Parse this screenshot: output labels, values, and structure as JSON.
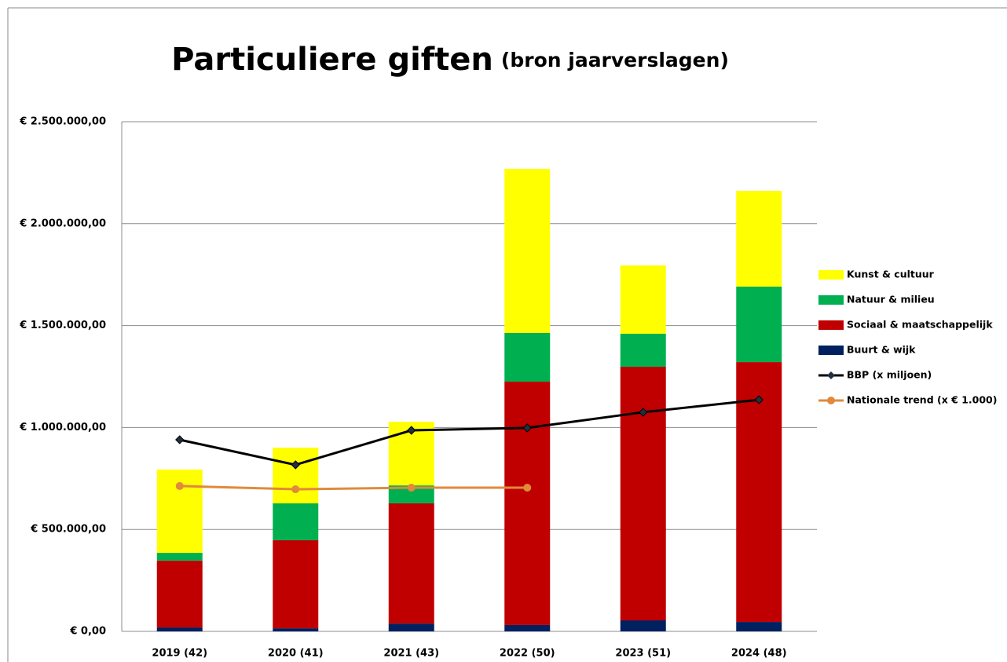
{
  "chart_data": {
    "type": "bar",
    "stacked": true,
    "title": "Particuliere giften",
    "subtitle": "(bron jaarverslagen)",
    "categories": [
      "2019 (42)",
      "2020 (41)",
      "2021 (43)",
      "2022 (50)",
      "2023 (51)",
      "2024 (48)"
    ],
    "series": [
      {
        "name": "Buurt & wijk",
        "type": "bar",
        "color": "#002060",
        "values": [
          19000,
          15000,
          38000,
          31000,
          54000,
          46000
        ]
      },
      {
        "name": "Sociaal & maatschappelijk",
        "type": "bar",
        "color": "#c00000",
        "values": [
          328000,
          432000,
          590000,
          1194000,
          1244000,
          1275000
        ]
      },
      {
        "name": "Natuur & milieu",
        "type": "bar",
        "color": "#00b050",
        "values": [
          38000,
          181000,
          88000,
          239000,
          162000,
          370000
        ]
      },
      {
        "name": "Kunst & cultuur",
        "type": "bar",
        "color": "#ffff00",
        "values": [
          409000,
          273000,
          312000,
          805000,
          335000,
          470000
        ]
      },
      {
        "name": "BBP (x miljoen)",
        "type": "line",
        "marker": "diamond",
        "color": "#000000",
        "values": [
          940000,
          817000,
          986000,
          998000,
          1075000,
          1136000
        ]
      },
      {
        "name": "Nationale trend (x € 1.000)",
        "type": "line",
        "marker": "circle",
        "color": "#e08a3c",
        "values": [
          713000,
          697000,
          705000,
          705000,
          null,
          null
        ]
      }
    ],
    "ylim": [
      0,
      2500000
    ],
    "yticks": [
      {
        "value": 0,
        "label": "€ 0,00"
      },
      {
        "value": 500000,
        "label": "€ 500.000,00"
      },
      {
        "value": 1000000,
        "label": "€ 1.000.000,00"
      },
      {
        "value": 1500000,
        "label": "€ 1.500.000,00"
      },
      {
        "value": 2000000,
        "label": "€ 2.000.000,00"
      },
      {
        "value": 2500000,
        "label": "€ 2.500.000,00"
      }
    ],
    "grid": true,
    "legend": "right"
  }
}
